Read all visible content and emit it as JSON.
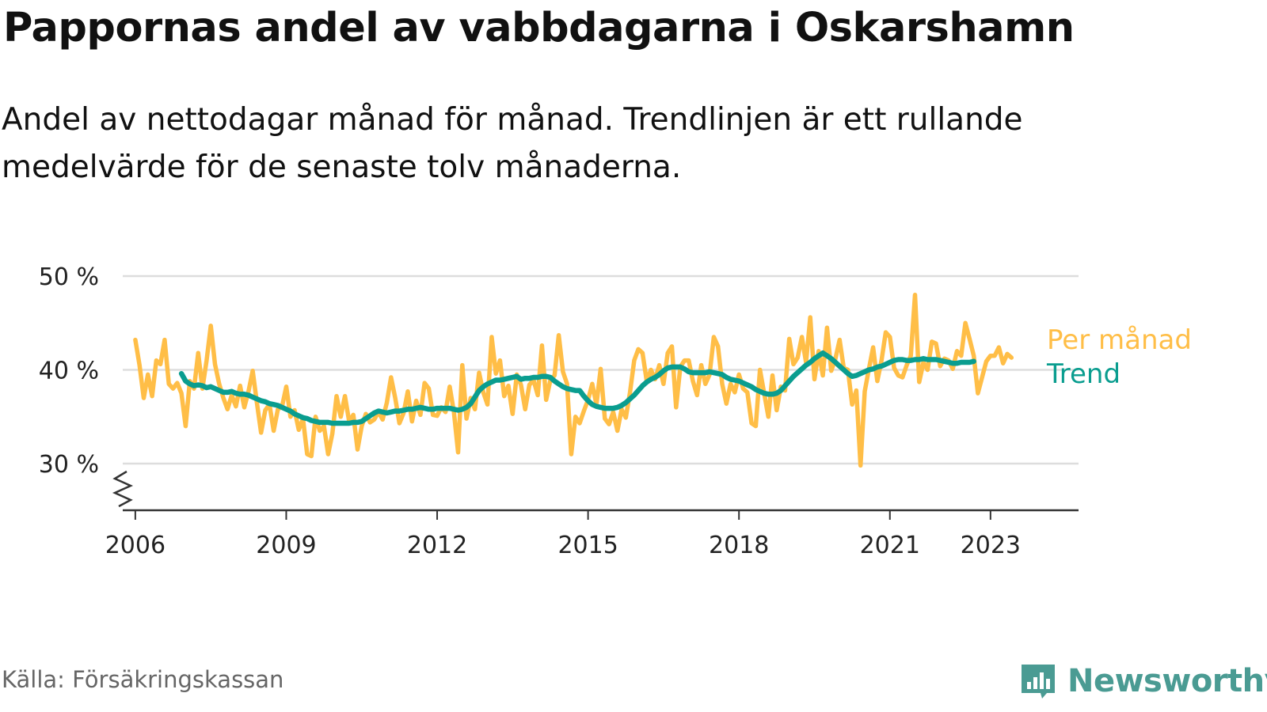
{
  "title": "Pappornas andel av vabbdagarna i Oskarshamn",
  "subtitle": "Andel av nettodagar månad för månad. Trendlinjen är ett rullande medelvärde för de senaste tolv månaderna.",
  "source": "Källa: Försäkringskassan",
  "brand": {
    "name": "Newsworthy",
    "icon": "newsworthy-logo-icon",
    "color": "#4a9b93"
  },
  "colors": {
    "monthly": "#ffbe47",
    "trend": "#0a9d8f",
    "grid": "#dddddd",
    "axis": "#333333"
  },
  "chart_data": {
    "type": "line",
    "x_range": [
      "2005-10",
      "2024-10"
    ],
    "ylim": [
      25,
      50
    ],
    "y_ticks": [
      30,
      40,
      50
    ],
    "y_tick_labels": [
      "30 %",
      "40 %",
      "50 %"
    ],
    "y_axis_break": true,
    "x_ticks": [
      "2006",
      "2009",
      "2012",
      "2015",
      "2018",
      "2021",
      "2023"
    ],
    "grid": true,
    "legend": "right, labels at line ends",
    "series": [
      {
        "name": "Per månad",
        "start": "2006-01",
        "step": "1 month",
        "values": [
          43.2,
          40.5,
          37.0,
          39.5,
          37.2,
          41.0,
          40.6,
          43.2,
          38.5,
          38.0,
          38.6,
          37.5,
          34.0,
          38.8,
          38.0,
          41.8,
          38.0,
          41.0,
          44.7,
          40.6,
          38.5,
          37.0,
          35.8,
          37.3,
          36.1,
          38.3,
          36.0,
          37.7,
          39.9,
          36.5,
          33.3,
          35.7,
          36.3,
          33.5,
          35.8,
          36.1,
          38.2,
          35.0,
          35.7,
          33.6,
          34.8,
          31.0,
          30.8,
          35.0,
          33.5,
          34.0,
          31.0,
          33.2,
          37.2,
          35.0,
          37.2,
          34.5,
          35.2,
          31.5,
          34.0,
          35.3,
          34.4,
          34.7,
          35.5,
          34.7,
          36.5,
          39.2,
          37.0,
          34.3,
          35.4,
          37.7,
          34.5,
          36.7,
          35.2,
          38.6,
          38.0,
          35.2,
          35.1,
          36.0,
          35.5,
          38.2,
          35.5,
          31.2,
          40.5,
          34.8,
          37.0,
          35.8,
          39.7,
          37.6,
          36.3,
          43.5,
          39.6,
          41.0,
          37.2,
          38.3,
          35.3,
          39.5,
          38.4,
          35.8,
          38.4,
          38.9,
          37.3,
          42.6,
          36.8,
          38.9,
          39.4,
          43.7,
          39.8,
          38.5,
          31.0,
          35.0,
          34.3,
          35.6,
          36.8,
          38.5,
          36.3,
          40.1,
          34.8,
          34.2,
          35.5,
          33.5,
          35.8,
          34.9,
          37.6,
          41.0,
          42.2,
          41.8,
          38.8,
          40.0,
          39.0,
          40.5,
          38.5,
          41.8,
          42.5,
          36.0,
          40.3,
          41.0,
          41.0,
          38.8,
          37.3,
          40.5,
          38.5,
          39.5,
          43.5,
          42.5,
          38.5,
          36.4,
          38.5,
          37.6,
          39.5,
          38.0,
          37.6,
          34.3,
          34.0,
          40.0,
          37.5,
          35.0,
          39.4,
          35.7,
          38.2,
          37.8,
          43.3,
          40.6,
          41.3,
          43.5,
          40.8,
          45.6,
          39.0,
          42.0,
          39.4,
          44.5,
          39.9,
          41.2,
          43.2,
          40.2,
          40.0,
          36.3,
          37.8,
          29.8,
          37.7,
          40.1,
          42.4,
          38.8,
          41.0,
          44.0,
          43.5,
          40.2,
          39.4,
          39.2,
          40.5,
          41.5,
          48.0,
          38.7,
          40.8,
          40.0,
          43.0,
          42.8,
          40.4,
          41.2,
          41.0,
          40.1,
          42.0,
          41.5,
          45.0,
          43.3,
          41.5,
          37.5,
          39.2,
          40.9,
          41.5,
          41.5,
          42.4,
          40.7,
          41.7,
          41.3
        ]
      },
      {
        "name": "Trend",
        "start": "2006-12",
        "step": "1 month",
        "values": [
          39.6,
          38.8,
          38.5,
          38.3,
          38.4,
          38.3,
          38.1,
          38.2,
          38.0,
          37.8,
          37.6,
          37.6,
          37.7,
          37.5,
          37.4,
          37.4,
          37.3,
          37.1,
          36.9,
          36.7,
          36.6,
          36.4,
          36.3,
          36.2,
          36.0,
          35.8,
          35.6,
          35.3,
          35.1,
          34.9,
          34.8,
          34.6,
          34.5,
          34.4,
          34.4,
          34.4,
          34.3,
          34.3,
          34.3,
          34.3,
          34.3,
          34.4,
          34.4,
          34.5,
          34.8,
          35.1,
          35.4,
          35.6,
          35.5,
          35.4,
          35.5,
          35.6,
          35.6,
          35.7,
          35.8,
          35.8,
          35.9,
          36.0,
          35.9,
          35.8,
          35.8,
          35.9,
          35.9,
          35.9,
          35.9,
          35.8,
          35.7,
          35.8,
          36.0,
          36.4,
          37.1,
          37.8,
          38.2,
          38.5,
          38.7,
          38.9,
          38.9,
          39.0,
          39.1,
          39.2,
          39.3,
          39.0,
          39.1,
          39.1,
          39.2,
          39.2,
          39.3,
          39.3,
          39.2,
          38.8,
          38.5,
          38.2,
          38.0,
          37.9,
          37.8,
          37.8,
          37.2,
          36.7,
          36.3,
          36.1,
          36.0,
          35.9,
          35.9,
          35.9,
          36.0,
          36.2,
          36.5,
          36.9,
          37.3,
          37.8,
          38.3,
          38.7,
          39.0,
          39.2,
          39.5,
          39.9,
          40.2,
          40.3,
          40.3,
          40.3,
          40.1,
          39.8,
          39.7,
          39.7,
          39.7,
          39.7,
          39.8,
          39.7,
          39.6,
          39.5,
          39.2,
          39.0,
          38.9,
          38.8,
          38.6,
          38.4,
          38.2,
          37.9,
          37.7,
          37.5,
          37.4,
          37.4,
          37.5,
          37.8,
          38.3,
          38.8,
          39.3,
          39.7,
          40.1,
          40.5,
          40.8,
          41.2,
          41.5,
          41.8,
          41.5,
          41.2,
          40.8,
          40.4,
          40.0,
          39.6,
          39.3,
          39.4,
          39.6,
          39.8,
          40.0,
          40.1,
          40.3,
          40.4,
          40.6,
          40.8,
          41.0,
          41.1,
          41.1,
          41.0,
          41.0,
          41.1,
          41.1,
          41.2,
          41.1,
          41.1,
          41.1,
          41.0,
          40.9,
          40.8,
          40.7,
          40.7,
          40.8,
          40.8,
          40.8,
          40.9
        ]
      }
    ]
  }
}
